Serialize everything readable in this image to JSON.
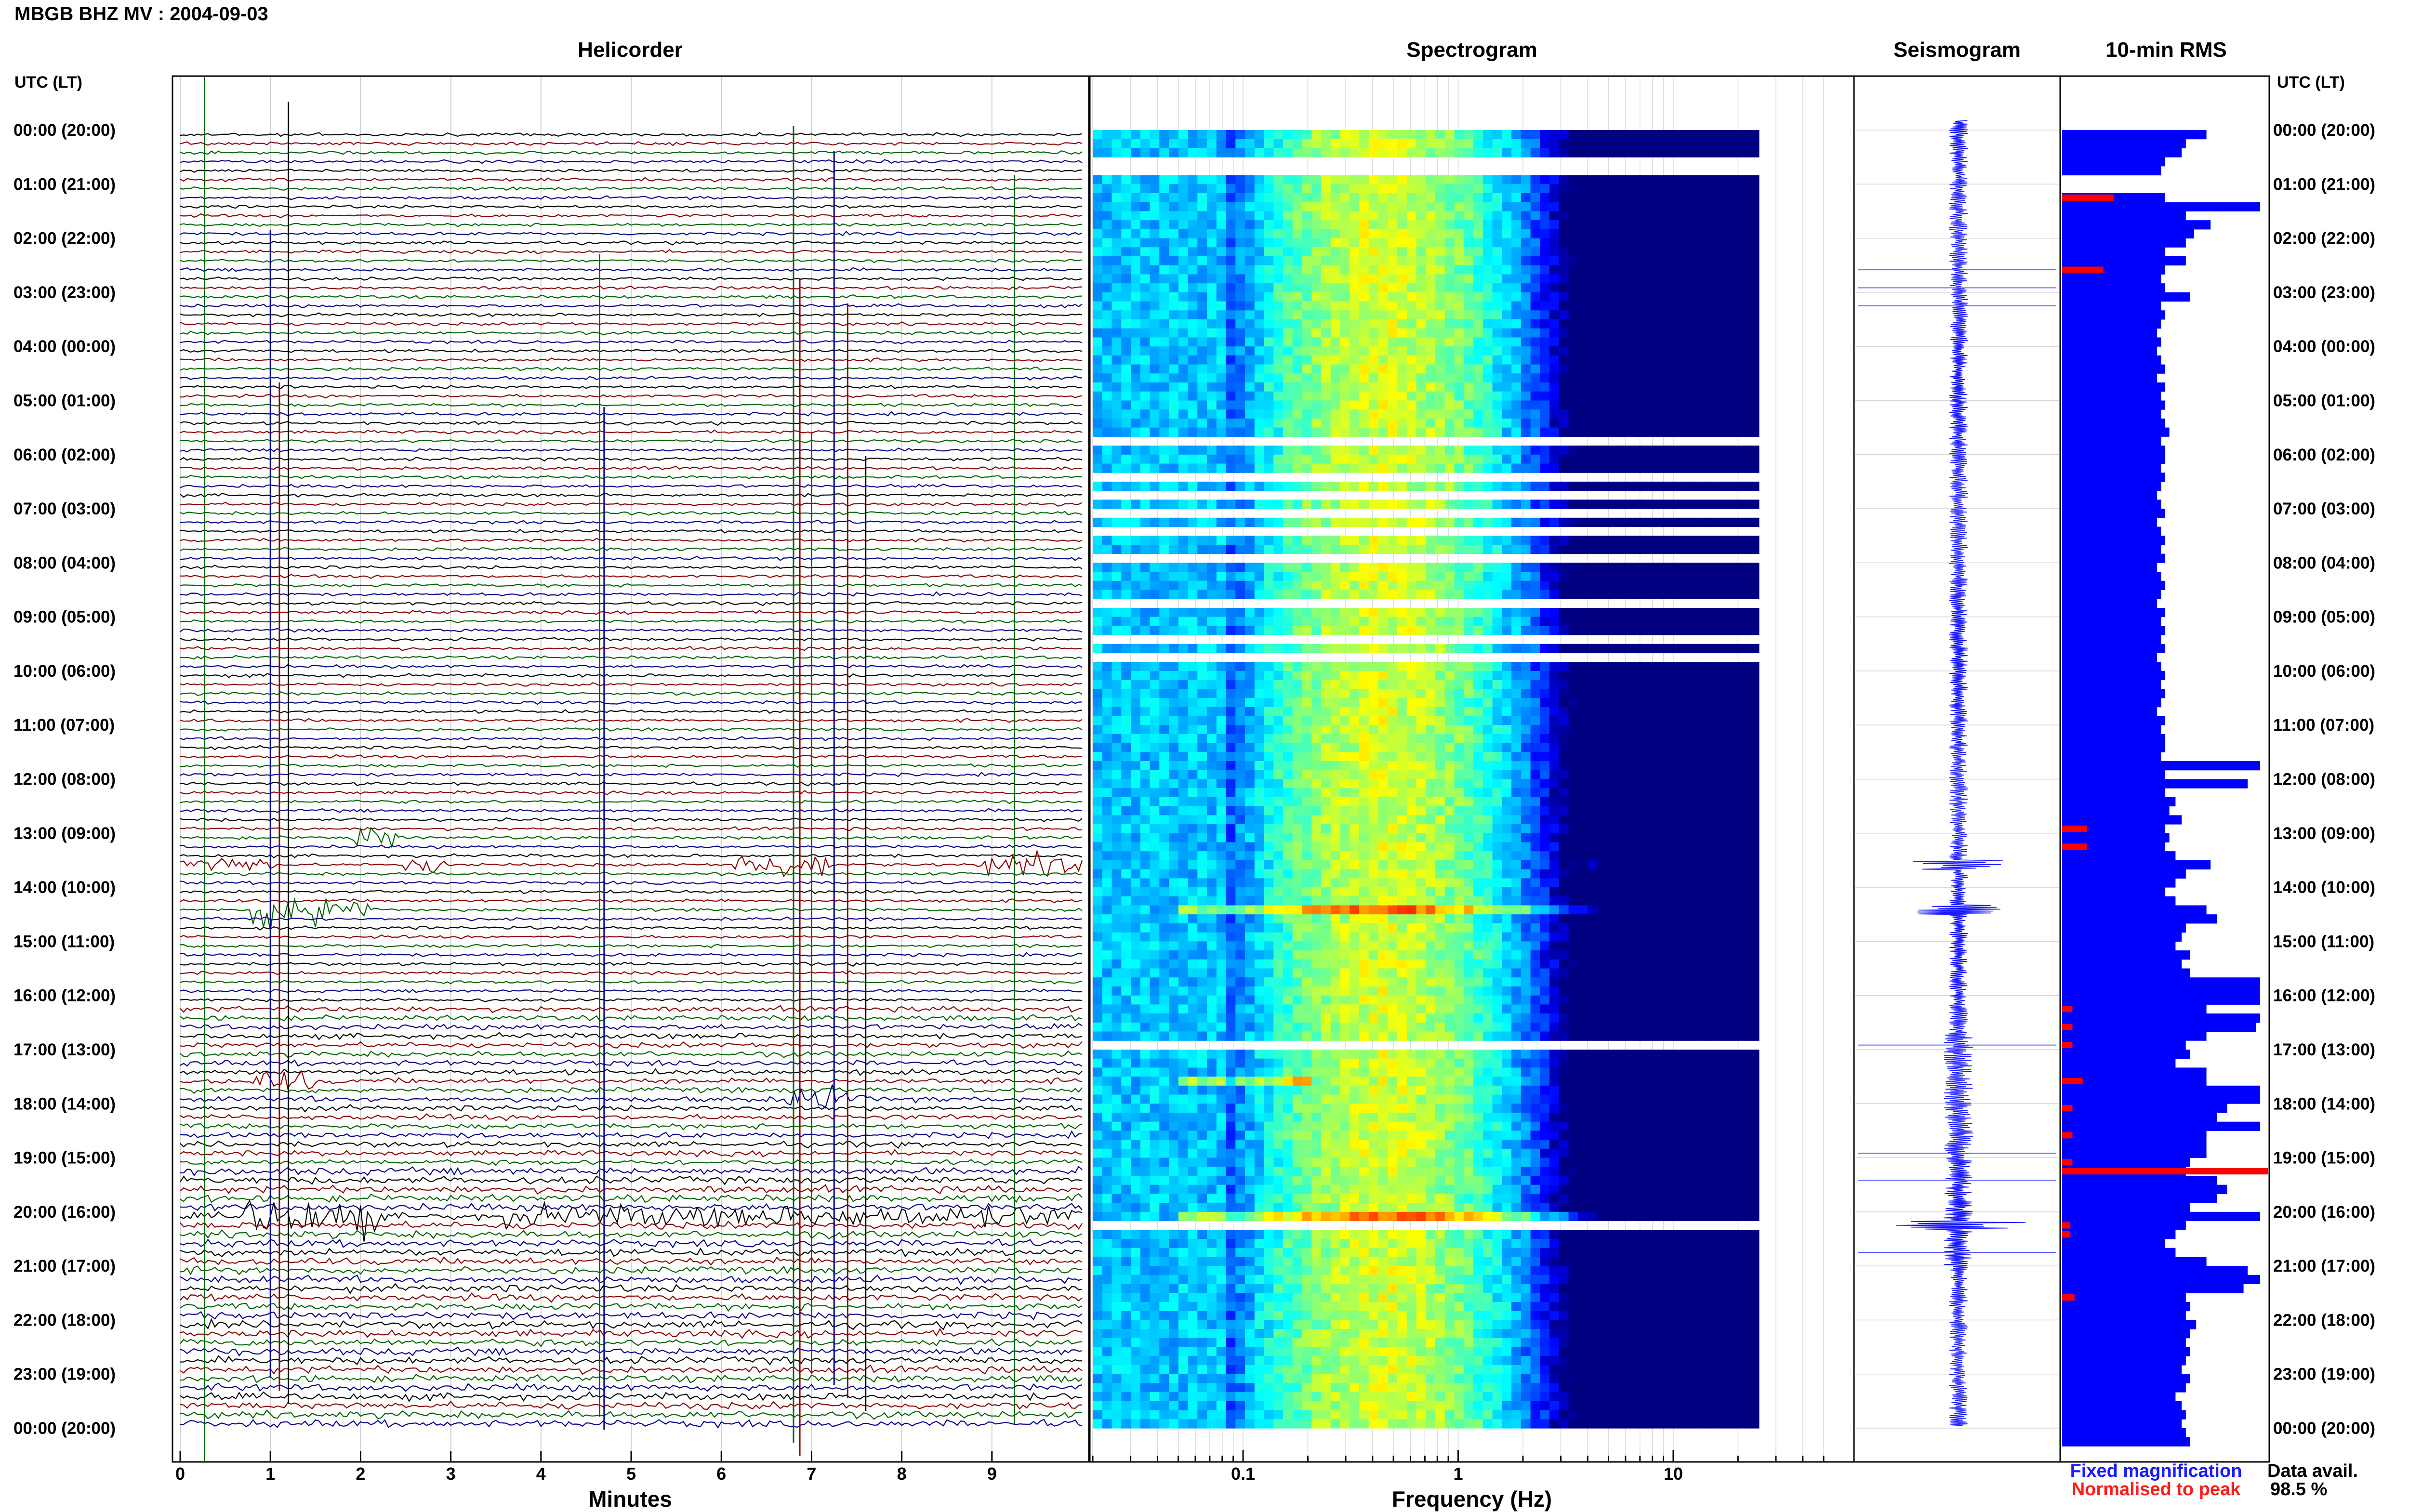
{
  "header": {
    "station_title": "MBGB BHZ MV : 2004-09-03",
    "utc_lt_left": "UTC (LT)",
    "utc_lt_right": "UTC (LT)"
  },
  "panels": {
    "helicorder": "Helicorder",
    "spectrogram": "Spectrogram",
    "seismogram": "Seismogram",
    "rms": "10-min RMS"
  },
  "axes": {
    "minutes_label": "Minutes",
    "frequency_label": "Frequency (Hz)"
  },
  "legend": {
    "fixed": "Fixed magnification",
    "normalised": "Normalised to peak",
    "fixed_color": "#1a1aff",
    "normalised_color": "#ff1a1a"
  },
  "data_avail": {
    "label": "Data avail.",
    "value": "98.5 %"
  },
  "chart_data": [
    {
      "type": "line",
      "title": "Helicorder",
      "xlabel": "Minutes",
      "x_ticks": [
        "0",
        "1",
        "2",
        "3",
        "4",
        "5",
        "6",
        "7",
        "8",
        "9"
      ],
      "xlim": [
        0,
        10
      ],
      "time_labels": [
        "00:00 (20:00)",
        "01:00 (21:00)",
        "02:00 (22:00)",
        "03:00 (23:00)",
        "04:00 (00:00)",
        "05:00 (01:00)",
        "06:00 (02:00)",
        "07:00 (03:00)",
        "08:00 (04:00)",
        "09:00 (05:00)",
        "10:00 (06:00)",
        "11:00 (07:00)",
        "12:00 (08:00)",
        "13:00 (09:00)",
        "14:00 (10:00)",
        "15:00 (11:00)",
        "16:00 (12:00)",
        "17:00 (13:00)",
        "18:00 (14:00)",
        "19:00 (15:00)",
        "20:00 (16:00)",
        "21:00 (17:00)",
        "22:00 (18:00)",
        "23:00 (19:00)",
        "00:00 (20:00)"
      ],
      "trace_colors": [
        "#000000",
        "#8b0000",
        "#006400",
        "#00008b"
      ],
      "rows_per_hour": 6,
      "events": [
        {
          "row": 81,
          "minute_start": 0.0,
          "minute_end": 1.1,
          "amplitude": 0.8
        },
        {
          "row": 81,
          "minute_start": 2.5,
          "minute_end": 3.0,
          "amplitude": 0.8
        },
        {
          "row": 81,
          "minute_start": 6.1,
          "minute_end": 7.2,
          "amplitude": 1.5
        },
        {
          "row": 81,
          "minute_start": 8.9,
          "minute_end": 10.0,
          "amplitude": 1.2
        },
        {
          "row": 78,
          "minute_start": 1.9,
          "minute_end": 2.4,
          "amplitude": 1.2
        },
        {
          "row": 86,
          "minute_start": 0.8,
          "minute_end": 2.1,
          "amplitude": 2.5
        },
        {
          "row": 105,
          "minute_start": 0.8,
          "minute_end": 1.5,
          "amplitude": 1.0
        },
        {
          "row": 120,
          "minute_start": 0.7,
          "minute_end": 2.2,
          "amplitude": 2.0
        },
        {
          "row": 120,
          "minute_start": 3.6,
          "minute_end": 10.0,
          "amplitude": 0.9
        },
        {
          "row": 107,
          "minute_start": 6.7,
          "minute_end": 7.6,
          "amplitude": 1.2
        }
      ]
    },
    {
      "type": "heatmap",
      "title": "Spectrogram",
      "xlabel": "Frequency (Hz)",
      "x_scale": "log",
      "xlim": [
        0.02,
        50
      ],
      "x_tick_labels": [
        "0.1",
        "1",
        "10"
      ],
      "x_ticks": [
        0.1,
        1,
        10
      ],
      "data_fmax": 25,
      "colormap": "jet",
      "peak_band_hz": [
        0.2,
        1.0
      ],
      "gap_rows": [
        3,
        4,
        34,
        38,
        40,
        42,
        44,
        47,
        52,
        56,
        58,
        101,
        121
      ],
      "events": [
        {
          "row": 81,
          "fmin": 4,
          "fmax": 20
        },
        {
          "row": 86,
          "fmin": 0.05,
          "fmax": 15
        },
        {
          "row": 105,
          "fmin": 0.05,
          "fmax": 0.2
        },
        {
          "row": 120,
          "fmin": 0.05,
          "fmax": 20
        }
      ]
    },
    {
      "type": "line",
      "title": "Seismogram",
      "rows": 144
    },
    {
      "type": "bar",
      "title": "10-min RMS",
      "orientation": "horizontal",
      "rows": 144,
      "rms_fixed": [
        0.7,
        0.6,
        0.58,
        0.5,
        0.48,
        0,
        0,
        0.5,
        0.96,
        0.6,
        0.72,
        0.64,
        0.6,
        0.5,
        0.6,
        0.5,
        0.48,
        0.5,
        0.62,
        0.48,
        0.5,
        0.48,
        0.46,
        0.48,
        0.46,
        0.48,
        0.5,
        0.46,
        0.5,
        0.48,
        0.5,
        0.48,
        0.5,
        0.52,
        0.48,
        0.5,
        0.5,
        0.48,
        0.5,
        0.48,
        0.46,
        0.48,
        0.5,
        0.46,
        0.48,
        0.5,
        0.48,
        0.5,
        0.46,
        0.48,
        0.5,
        0.48,
        0.46,
        0.5,
        0.48,
        0.5,
        0.48,
        0.5,
        0.46,
        0.48,
        0.5,
        0.48,
        0.5,
        0.48,
        0.46,
        0.5,
        0.48,
        0.5,
        0.5,
        0.48,
        0.96,
        0.5,
        0.9,
        0.5,
        0.55,
        0.52,
        0.58,
        0.5,
        0.52,
        0.5,
        0.55,
        0.72,
        0.6,
        0.55,
        0.5,
        0.55,
        0.7,
        0.75,
        0.6,
        0.58,
        0.55,
        0.62,
        0.58,
        0.62,
        0.96,
        0.96,
        0.96,
        0.7,
        0.96,
        0.94,
        0.7,
        0.6,
        0.62,
        0.55,
        0.7,
        0.7,
        0.96,
        0.96,
        0.8,
        0.75,
        0.96,
        0.7,
        0.7,
        0.7,
        0.62,
        0.6,
        0.75,
        0.8,
        0.75,
        0.62,
        0.96,
        0.6,
        0.55,
        0.5,
        0.55,
        0.7,
        0.9,
        0.96,
        0.88,
        0.6,
        0.62,
        0.6,
        0.65,
        0.62,
        0.6,
        0.62,
        0.6,
        0.58,
        0.62,
        0.6,
        0.55,
        0.58,
        0.6,
        0.58,
        0.6,
        0.62
      ],
      "rms_normalised_rows": [
        7,
        15,
        77,
        79,
        97,
        99,
        101,
        105,
        108,
        111,
        114,
        115,
        121,
        122,
        129
      ],
      "rms_normalised_fraction": [
        0.25,
        0.2,
        0.12,
        0.12,
        0.05,
        0.05,
        0.05,
        0.1,
        0.05,
        0.05,
        0.05,
        1.0,
        0.04,
        0.04,
        0.06
      ]
    }
  ]
}
